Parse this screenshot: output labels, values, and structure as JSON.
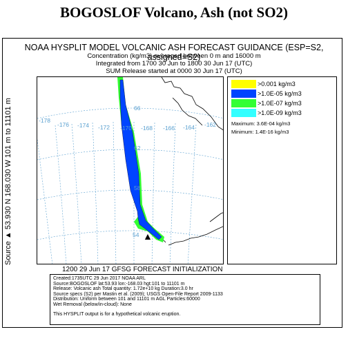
{
  "page_title": "BOGOSLOF Volcano, Ash (not SO2)",
  "header": {
    "model_title": "NOAA HYSPLIT MODEL VOLCANIC ASH FORECAST GUIDANCE (ESP=S2, assigned=S2)",
    "line1": "Concentration  (kg/m3) averaged between       0 m and 16000 m",
    "line2": "Integrated from 1700 30 Jun to 1800 30 Jun 17 (UTC)",
    "line3": "SUM  Release started at 0000 30 Jun 17 (UTC)"
  },
  "side_label": "Source ▲ 53.930  N 168.030  W   101 m to 11101 m",
  "map": {
    "lon_labels": [
      "-178",
      "-176",
      "-174",
      "-172",
      "-170",
      "-168",
      "-166",
      "-164",
      "-162"
    ],
    "lat_labels": [
      "66",
      "62",
      "58",
      "54"
    ],
    "source_marker": "▲"
  },
  "legend": {
    "items": [
      {
        "label": ">0.001 kg/m3",
        "color": "#ffff00"
      },
      {
        "label": ">1.0E-05 kg/m3",
        "color": "#0044ff"
      },
      {
        "label": ">1.0E-07 kg/m3",
        "color": "#33ff33"
      },
      {
        "label": ">1.0E-09 kg/m3",
        "color": "#33ffff"
      }
    ],
    "maximum": "Maximum: 3.6E-04 kg/m3",
    "minimum": "Minimum: 1.4E-16 kg/m3"
  },
  "init_line": "1200 29 Jun 17 GFSG FORECAST INITIALIZATION",
  "info": {
    "lines": [
      "Created:1735UTC 29 Jun 2017 NOAA ARL",
      "Source:BOGOSLOF  lat:53.93  lon:-168.03  hgt:101 to 11101 m",
      "Release: Volcanic ash   Total quantity: 1.72e+10 kg  Duration:3.0 hr",
      "Source specs (S2) per Mastin et al. (2009); USGS Open-File Report 2009-1133",
      "Distribution: Uniform between 101 and 11101 m AGL   Particles:60000",
      "Wet Removal (below/in-cloud): None"
    ],
    "note": "This HYSPLIT output is for a hypothetical volcanic eruption."
  }
}
